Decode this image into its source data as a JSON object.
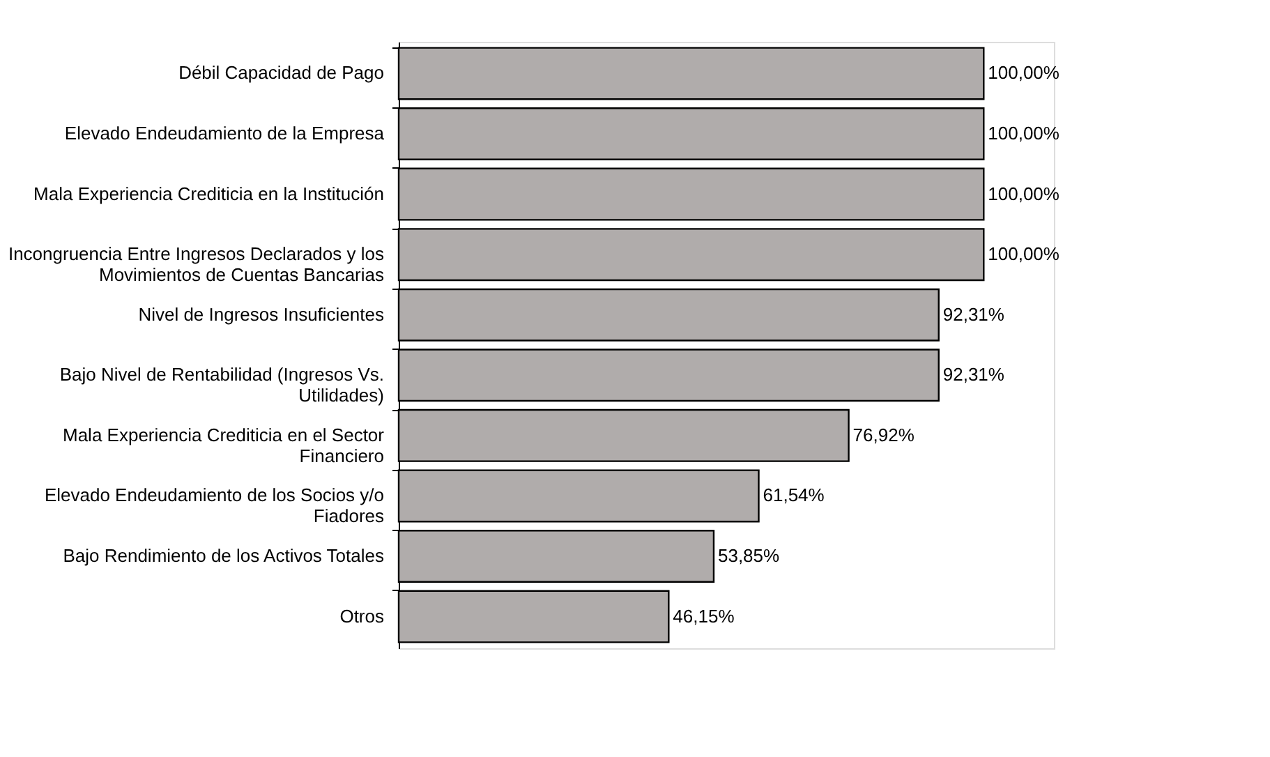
{
  "chart_data": {
    "type": "bar",
    "orientation": "horizontal",
    "categories": [
      "Débil Capacidad de Pago",
      "Elevado Endeudamiento de la Empresa",
      "Mala Experiencia Crediticia en la Institución",
      "Incongruencia Entre Ingresos Declarados y los\nMovimientos de Cuentas Bancarias",
      "Nivel de Ingresos Insuficientes",
      "Bajo Nivel de Rentabilidad (Ingresos Vs.\nUtilidades)",
      "Mala Experiencia Crediticia en el Sector\nFinanciero",
      "Elevado Endeudamiento de los Socios y/o\nFiadores",
      "Bajo Rendimiento de los Activos Totales",
      "Otros"
    ],
    "values": [
      100,
      100,
      100,
      100,
      92.31,
      92.31,
      76.92,
      61.54,
      53.85,
      46.15
    ],
    "value_labels": [
      "100,00%",
      "100,00%",
      "100,00%",
      "100,00%",
      "92,31%",
      "92,31%",
      "76,92%",
      "61,54%",
      "53,85%",
      "46,15%"
    ],
    "color": "#b0acab"
  }
}
